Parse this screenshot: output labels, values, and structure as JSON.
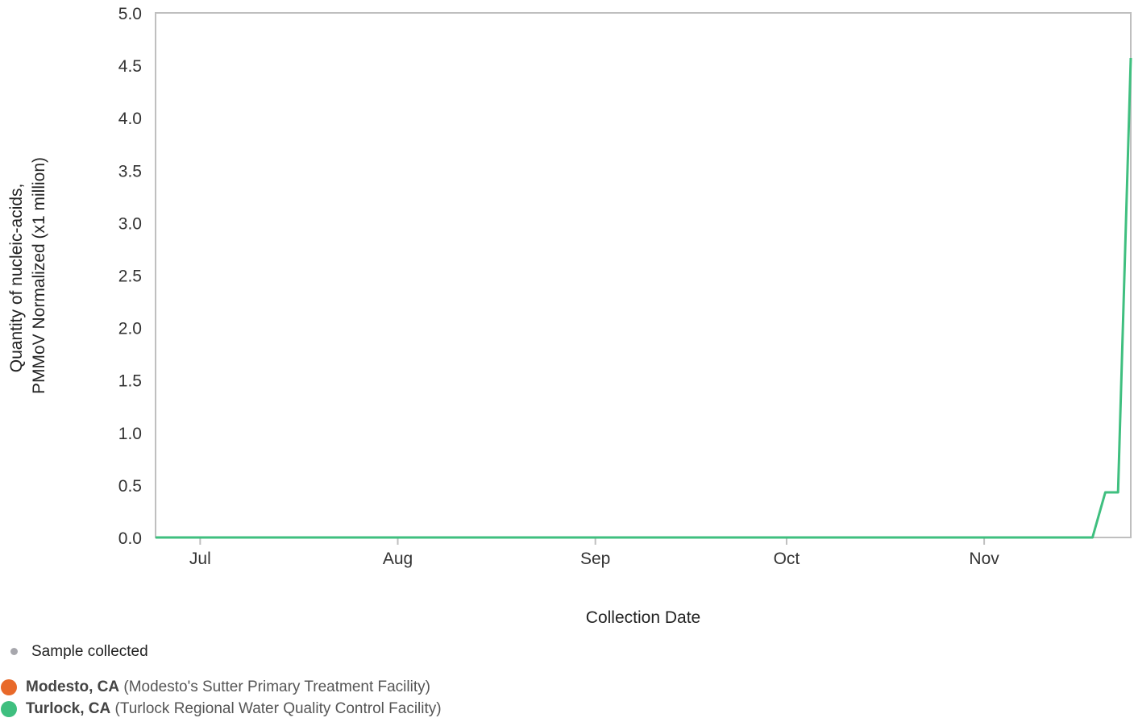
{
  "chart_data": {
    "type": "line",
    "xlabel": "Collection Date",
    "ylabel_lines": [
      "Quantity of nucleic-acids,",
      "PMMoV Normalized (x1 million)"
    ],
    "x_ticks": [
      "Jul",
      "Aug",
      "Sep",
      "Oct",
      "Nov"
    ],
    "x_tick_dates": [
      "2023-07-01",
      "2023-08-01",
      "2023-09-01",
      "2023-10-01",
      "2023-11-01"
    ],
    "x_range": [
      "2023-06-24",
      "2023-11-24"
    ],
    "y_ticks": [
      "0.0",
      "0.5",
      "1.0",
      "1.5",
      "2.0",
      "2.5",
      "3.0",
      "3.5",
      "4.0",
      "4.5",
      "5.0"
    ],
    "ylim": [
      0,
      5
    ],
    "grid": false,
    "series": [
      {
        "name": "Modesto, CA",
        "color": "#e8692a",
        "points": []
      },
      {
        "name": "Turlock, CA",
        "color": "#3fbf7f",
        "points": [
          {
            "x": "2023-06-24",
            "y": 0.0
          },
          {
            "x": "2023-11-18",
            "y": 0.0
          },
          {
            "x": "2023-11-20",
            "y": 0.43
          },
          {
            "x": "2023-11-22",
            "y": 0.43
          },
          {
            "x": "2023-11-24",
            "y": 4.57
          }
        ]
      }
    ]
  },
  "legend": {
    "sample_label": "Sample collected",
    "sample_color": "#a7a7ad",
    "sites": [
      {
        "name": "Modesto, CA",
        "facility": "(Modesto's Sutter Primary Treatment Facility)",
        "color": "#e8692a"
      },
      {
        "name": "Turlock, CA",
        "facility": "(Turlock Regional Water Quality Control Facility)",
        "color": "#3fbf7f"
      }
    ]
  }
}
